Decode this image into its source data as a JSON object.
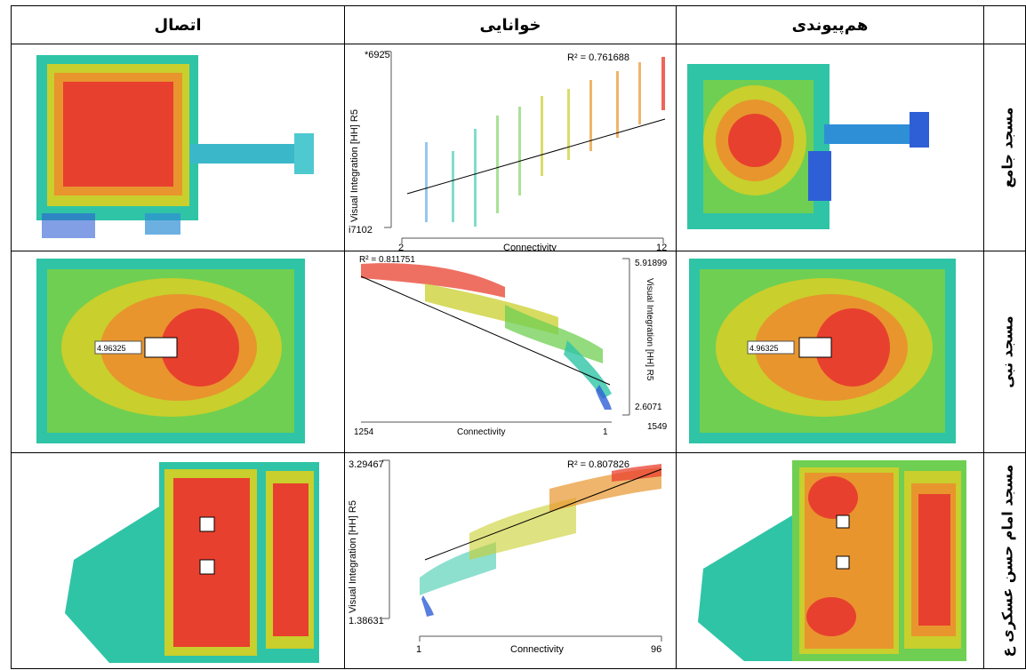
{
  "headers": {
    "connectivity": "اتصال",
    "readability": "خوانایی",
    "integration": "هم‌پیوندی"
  },
  "rows": [
    {
      "label": "مسجد جامع",
      "plot": {
        "ylabel": "Visual Integration [HH] R5",
        "xlabel": "Connectivity",
        "ymax_label": "*6925",
        "ymin_label": "i7102",
        "xmin_label": "2",
        "xmax_label": "12",
        "r2": "R² = 0.761688"
      }
    },
    {
      "label": "مسجد نبی",
      "map_value": "4.96325",
      "plot": {
        "ylabel": "Visual Integration [HH] R5",
        "xlabel": "Connectivity",
        "ymax_label": "5.91899",
        "ymin_label": "2.6071",
        "xmin_label": "1",
        "xmax_label": "1254",
        "r2": "R² = 0.811751",
        "corner": "1549"
      }
    },
    {
      "label": "مسجد امام حسن عسکری ع",
      "plot": {
        "ylabel": "Visual Integration [HH] R5",
        "xlabel": "Connectivity",
        "ymax_label": "3.29467",
        "ymin_label": "1.38631",
        "xmin_label": "1",
        "xmax_label": "96",
        "r2": "R² = 0.807826"
      }
    }
  ],
  "colors": {
    "red": "#e8402e",
    "orange": "#e8952e",
    "yellow": "#c9cf2c",
    "green": "#6fcf52",
    "teal": "#2fc4a6",
    "blue": "#2e5fd6"
  }
}
